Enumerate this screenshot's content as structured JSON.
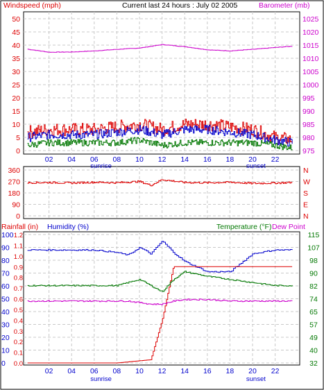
{
  "title": "Current last 24 hours : July 02 2005",
  "colors": {
    "red": "#dd0000",
    "blue": "#0000cc",
    "green": "#007700",
    "magenta": "#cc00cc",
    "grid": "#c8c8c8",
    "frame": "#000000"
  },
  "x_axis": {
    "ticks": [
      "02",
      "04",
      "06",
      "08",
      "10",
      "12",
      "14",
      "16",
      "18",
      "20",
      "22"
    ],
    "sunrise": "sunrise",
    "sunset": "sunset"
  },
  "chart_data": [
    {
      "type": "line",
      "panel": "wind-barometer",
      "left_label": "Windspeed (mph)",
      "right_label": "Barometer (mb)",
      "left_ticks": [
        "0",
        "5",
        "10",
        "15",
        "20",
        "25",
        "30",
        "35",
        "40",
        "45",
        "50"
      ],
      "right_ticks": [
        "975",
        "980",
        "985",
        "990",
        "995",
        "1000",
        "1005",
        "1010",
        "1015",
        "1020",
        "1025"
      ],
      "ylim_left": [
        0,
        50
      ],
      "ylim_right": [
        975,
        1025
      ],
      "x": [
        0,
        2,
        4,
        6,
        8,
        10,
        12,
        14,
        16,
        18,
        20,
        22,
        23.5
      ],
      "series": [
        {
          "role": "barometer",
          "axis": "right",
          "color": "magenta",
          "values": [
            1013.5,
            1012.3,
            1012.4,
            1012.8,
            1013.4,
            1013.9,
            1015.2,
            1014.4,
            1013.2,
            1012.8,
            1013.4,
            1014.1,
            1014.6
          ]
        },
        {
          "role": "windspeed-max",
          "axis": "left",
          "color": "red",
          "values": [
            7,
            8,
            8,
            8,
            9,
            10,
            8,
            10,
            10,
            9,
            8,
            5,
            4
          ]
        },
        {
          "role": "windspeed-avg",
          "axis": "left",
          "color": "blue",
          "values": [
            5,
            6,
            6,
            6,
            7,
            8,
            6,
            8,
            8,
            7,
            6,
            4,
            3
          ]
        },
        {
          "role": "windspeed-min",
          "axis": "left",
          "color": "green",
          "values": [
            2,
            3,
            3,
            3,
            3,
            4,
            2,
            3,
            3,
            3,
            3,
            2,
            1
          ]
        }
      ]
    },
    {
      "type": "line",
      "panel": "wind-direction",
      "left_ticks": [
        "0",
        "90",
        "180",
        "270",
        "360"
      ],
      "right_ticks": [
        "N",
        "W",
        "S",
        "E",
        "N"
      ],
      "ylim": [
        0,
        360
      ],
      "x": [
        0,
        2,
        4,
        6,
        8,
        10,
        11,
        12,
        14,
        16,
        18,
        20,
        22,
        23.5
      ],
      "series": [
        {
          "role": "direction",
          "color": "red",
          "values": [
            260,
            262,
            258,
            264,
            260,
            270,
            240,
            285,
            262,
            260,
            264,
            255,
            258,
            262
          ]
        }
      ]
    },
    {
      "type": "line",
      "panel": "rain-humidity-temperature",
      "left_label_rain": "Rainfall (in)",
      "left_label_humidity": "Humidity (%)",
      "right_label": "Temperature (°F)",
      "right_label_dew": "Dew Point",
      "humidity_ticks": [
        "0",
        "10",
        "20",
        "30",
        "40",
        "50",
        "60",
        "70",
        "80",
        "90",
        "100"
      ],
      "rain_ticks": [
        "0.0",
        "0.1",
        "0.2",
        "0.3",
        "0.4",
        "0.5",
        "0.6",
        "0.7",
        "0.8",
        "0.9",
        "1.0",
        "1.1",
        "1.2"
      ],
      "temp_ticks": [
        "32",
        "40",
        "49",
        "57",
        "65",
        "74",
        "82",
        "90",
        "98",
        "107",
        "115"
      ],
      "ylim_humidity": [
        0,
        100
      ],
      "ylim_rain": [
        0,
        1.2
      ],
      "ylim_temp": [
        32,
        115
      ],
      "x": [
        0,
        2,
        4,
        6,
        8,
        9,
        10,
        11,
        12,
        13,
        14,
        16,
        18,
        20,
        22,
        23.5
      ],
      "series": [
        {
          "role": "humidity",
          "axis": "left",
          "color": "blue",
          "values": [
            88,
            88,
            88,
            88,
            86,
            84,
            90,
            85,
            95,
            86,
            79,
            71,
            71,
            85,
            88,
            88
          ]
        },
        {
          "role": "rainfall",
          "axis": "rain",
          "color": "red",
          "values": [
            0,
            0,
            0,
            0,
            0,
            0.01,
            0.02,
            0.03,
            0.4,
            0.9,
            0.9,
            0.9,
            0.9,
            0.9,
            0.9,
            0.9
          ]
        },
        {
          "role": "temperature",
          "axis": "right",
          "color": "green",
          "values": [
            82,
            82,
            82,
            82,
            82,
            84,
            86,
            82,
            78,
            86,
            91,
            88,
            86,
            84,
            82,
            82
          ]
        },
        {
          "role": "dew-point",
          "axis": "right",
          "color": "magenta",
          "values": [
            72,
            72,
            72,
            72,
            72,
            72,
            71,
            70,
            70,
            72,
            73,
            73,
            72,
            72,
            72,
            72
          ]
        }
      ]
    }
  ]
}
